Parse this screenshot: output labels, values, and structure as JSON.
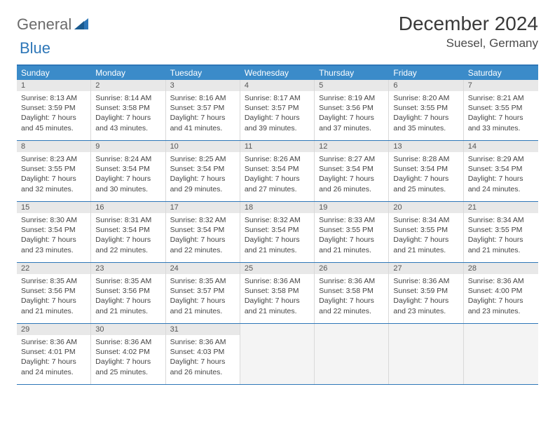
{
  "logo": {
    "text1": "General",
    "text2": "Blue"
  },
  "title": "December 2024",
  "location": "Suesel, Germany",
  "colors": {
    "header_bg": "#3b8bc9",
    "header_text": "#ffffff",
    "border": "#2e77b8",
    "daynum_bg": "#e8e8e8",
    "cell_border": "#d9d9d9",
    "empty_bg": "#f4f4f4"
  },
  "day_headers": [
    "Sunday",
    "Monday",
    "Tuesday",
    "Wednesday",
    "Thursday",
    "Friday",
    "Saturday"
  ],
  "weeks": [
    [
      {
        "num": "1",
        "sunrise": "Sunrise: 8:13 AM",
        "sunset": "Sunset: 3:59 PM",
        "day1": "Daylight: 7 hours",
        "day2": "and 45 minutes."
      },
      {
        "num": "2",
        "sunrise": "Sunrise: 8:14 AM",
        "sunset": "Sunset: 3:58 PM",
        "day1": "Daylight: 7 hours",
        "day2": "and 43 minutes."
      },
      {
        "num": "3",
        "sunrise": "Sunrise: 8:16 AM",
        "sunset": "Sunset: 3:57 PM",
        "day1": "Daylight: 7 hours",
        "day2": "and 41 minutes."
      },
      {
        "num": "4",
        "sunrise": "Sunrise: 8:17 AM",
        "sunset": "Sunset: 3:57 PM",
        "day1": "Daylight: 7 hours",
        "day2": "and 39 minutes."
      },
      {
        "num": "5",
        "sunrise": "Sunrise: 8:19 AM",
        "sunset": "Sunset: 3:56 PM",
        "day1": "Daylight: 7 hours",
        "day2": "and 37 minutes."
      },
      {
        "num": "6",
        "sunrise": "Sunrise: 8:20 AM",
        "sunset": "Sunset: 3:55 PM",
        "day1": "Daylight: 7 hours",
        "day2": "and 35 minutes."
      },
      {
        "num": "7",
        "sunrise": "Sunrise: 8:21 AM",
        "sunset": "Sunset: 3:55 PM",
        "day1": "Daylight: 7 hours",
        "day2": "and 33 minutes."
      }
    ],
    [
      {
        "num": "8",
        "sunrise": "Sunrise: 8:23 AM",
        "sunset": "Sunset: 3:55 PM",
        "day1": "Daylight: 7 hours",
        "day2": "and 32 minutes."
      },
      {
        "num": "9",
        "sunrise": "Sunrise: 8:24 AM",
        "sunset": "Sunset: 3:54 PM",
        "day1": "Daylight: 7 hours",
        "day2": "and 30 minutes."
      },
      {
        "num": "10",
        "sunrise": "Sunrise: 8:25 AM",
        "sunset": "Sunset: 3:54 PM",
        "day1": "Daylight: 7 hours",
        "day2": "and 29 minutes."
      },
      {
        "num": "11",
        "sunrise": "Sunrise: 8:26 AM",
        "sunset": "Sunset: 3:54 PM",
        "day1": "Daylight: 7 hours",
        "day2": "and 27 minutes."
      },
      {
        "num": "12",
        "sunrise": "Sunrise: 8:27 AM",
        "sunset": "Sunset: 3:54 PM",
        "day1": "Daylight: 7 hours",
        "day2": "and 26 minutes."
      },
      {
        "num": "13",
        "sunrise": "Sunrise: 8:28 AM",
        "sunset": "Sunset: 3:54 PM",
        "day1": "Daylight: 7 hours",
        "day2": "and 25 minutes."
      },
      {
        "num": "14",
        "sunrise": "Sunrise: 8:29 AM",
        "sunset": "Sunset: 3:54 PM",
        "day1": "Daylight: 7 hours",
        "day2": "and 24 minutes."
      }
    ],
    [
      {
        "num": "15",
        "sunrise": "Sunrise: 8:30 AM",
        "sunset": "Sunset: 3:54 PM",
        "day1": "Daylight: 7 hours",
        "day2": "and 23 minutes."
      },
      {
        "num": "16",
        "sunrise": "Sunrise: 8:31 AM",
        "sunset": "Sunset: 3:54 PM",
        "day1": "Daylight: 7 hours",
        "day2": "and 22 minutes."
      },
      {
        "num": "17",
        "sunrise": "Sunrise: 8:32 AM",
        "sunset": "Sunset: 3:54 PM",
        "day1": "Daylight: 7 hours",
        "day2": "and 22 minutes."
      },
      {
        "num": "18",
        "sunrise": "Sunrise: 8:32 AM",
        "sunset": "Sunset: 3:54 PM",
        "day1": "Daylight: 7 hours",
        "day2": "and 21 minutes."
      },
      {
        "num": "19",
        "sunrise": "Sunrise: 8:33 AM",
        "sunset": "Sunset: 3:55 PM",
        "day1": "Daylight: 7 hours",
        "day2": "and 21 minutes."
      },
      {
        "num": "20",
        "sunrise": "Sunrise: 8:34 AM",
        "sunset": "Sunset: 3:55 PM",
        "day1": "Daylight: 7 hours",
        "day2": "and 21 minutes."
      },
      {
        "num": "21",
        "sunrise": "Sunrise: 8:34 AM",
        "sunset": "Sunset: 3:55 PM",
        "day1": "Daylight: 7 hours",
        "day2": "and 21 minutes."
      }
    ],
    [
      {
        "num": "22",
        "sunrise": "Sunrise: 8:35 AM",
        "sunset": "Sunset: 3:56 PM",
        "day1": "Daylight: 7 hours",
        "day2": "and 21 minutes."
      },
      {
        "num": "23",
        "sunrise": "Sunrise: 8:35 AM",
        "sunset": "Sunset: 3:56 PM",
        "day1": "Daylight: 7 hours",
        "day2": "and 21 minutes."
      },
      {
        "num": "24",
        "sunrise": "Sunrise: 8:35 AM",
        "sunset": "Sunset: 3:57 PM",
        "day1": "Daylight: 7 hours",
        "day2": "and 21 minutes."
      },
      {
        "num": "25",
        "sunrise": "Sunrise: 8:36 AM",
        "sunset": "Sunset: 3:58 PM",
        "day1": "Daylight: 7 hours",
        "day2": "and 21 minutes."
      },
      {
        "num": "26",
        "sunrise": "Sunrise: 8:36 AM",
        "sunset": "Sunset: 3:58 PM",
        "day1": "Daylight: 7 hours",
        "day2": "and 22 minutes."
      },
      {
        "num": "27",
        "sunrise": "Sunrise: 8:36 AM",
        "sunset": "Sunset: 3:59 PM",
        "day1": "Daylight: 7 hours",
        "day2": "and 23 minutes."
      },
      {
        "num": "28",
        "sunrise": "Sunrise: 8:36 AM",
        "sunset": "Sunset: 4:00 PM",
        "day1": "Daylight: 7 hours",
        "day2": "and 23 minutes."
      }
    ],
    [
      {
        "num": "29",
        "sunrise": "Sunrise: 8:36 AM",
        "sunset": "Sunset: 4:01 PM",
        "day1": "Daylight: 7 hours",
        "day2": "and 24 minutes."
      },
      {
        "num": "30",
        "sunrise": "Sunrise: 8:36 AM",
        "sunset": "Sunset: 4:02 PM",
        "day1": "Daylight: 7 hours",
        "day2": "and 25 minutes."
      },
      {
        "num": "31",
        "sunrise": "Sunrise: 8:36 AM",
        "sunset": "Sunset: 4:03 PM",
        "day1": "Daylight: 7 hours",
        "day2": "and 26 minutes."
      },
      null,
      null,
      null,
      null
    ]
  ]
}
